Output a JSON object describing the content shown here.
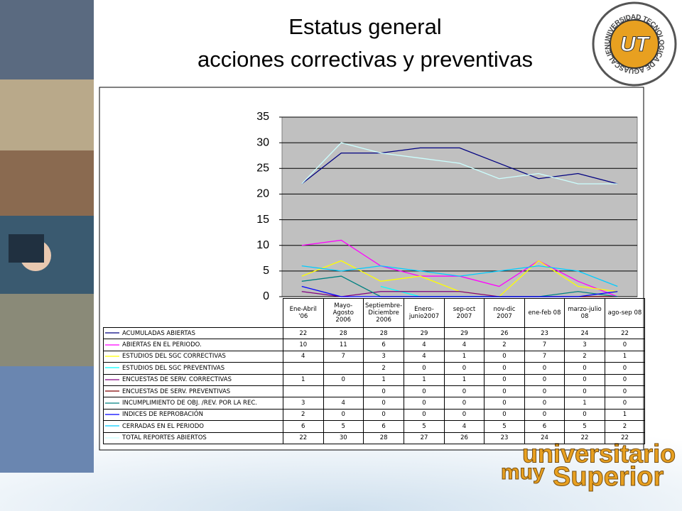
{
  "chart_data": {
    "type": "line",
    "title": "Estatus general",
    "subtitle": "acciones correctivas y preventivas",
    "categories": [
      "Ene-Abril '06",
      "Mayo-Agosto 2006",
      "Septiembre-Diciembre 2006",
      "Enero-junio2007",
      "sep-oct 2007",
      "nov-dic 2007",
      "ene-feb 08",
      "marzo-julio 08",
      "ago-sep 08"
    ],
    "series": [
      {
        "name": "ACUMULADAS ABIERTAS",
        "color": "#000080",
        "values": [
          22,
          28,
          28,
          29,
          29,
          26,
          23,
          24,
          22
        ]
      },
      {
        "name": "ABIERTAS EN EL PERIODO.",
        "color": "#ff00ff",
        "values": [
          10,
          11,
          6,
          4,
          4,
          2,
          7,
          3,
          0
        ]
      },
      {
        "name": "ESTUDIOS DEL SGC CORRECTIVAS",
        "color": "#ffff00",
        "values": [
          4,
          7,
          3,
          4,
          1,
          0,
          7,
          2,
          1
        ]
      },
      {
        "name": "ESTUDIOS DEL SGC PREVENTIVAS",
        "color": "#00ffff",
        "values": [
          null,
          null,
          2,
          0,
          0,
          0,
          0,
          0,
          0
        ]
      },
      {
        "name": "ENCUESTAS DE SERV.  CORRECTIVAS",
        "color": "#800080",
        "values": [
          1,
          0,
          1,
          1,
          1,
          0,
          0,
          0,
          0
        ]
      },
      {
        "name": "ENCUESTAS DE SERV.  PREVENTIVAS",
        "color": "#800000",
        "values": [
          null,
          null,
          0,
          0,
          0,
          0,
          0,
          0,
          0
        ]
      },
      {
        "name": "INCUMPLIMIENTO DE OBJ. /REV. POR LA REC.",
        "color": "#008080",
        "values": [
          3,
          4,
          0,
          0,
          0,
          0,
          0,
          1,
          0
        ]
      },
      {
        "name": "INDICES DE REPROBACIÓN",
        "color": "#0000ff",
        "values": [
          2,
          0,
          0,
          0,
          0,
          0,
          0,
          0,
          1
        ]
      },
      {
        "name": "CERRADAS EN EL PERIODO",
        "color": "#00ccff",
        "values": [
          6,
          5,
          6,
          5,
          4,
          5,
          6,
          5,
          2
        ]
      },
      {
        "name": "TOTAL REPORTES ABIERTOS",
        "color": "#ccffff",
        "values": [
          22,
          30,
          28,
          27,
          26,
          23,
          24,
          22,
          22
        ]
      }
    ],
    "ylim": [
      0,
      35
    ],
    "yticks": [
      0,
      5,
      10,
      15,
      20,
      25,
      30,
      35
    ],
    "grid": true,
    "plot_background": "#c0c0c0"
  },
  "logo": {
    "ring": "UNIVERSIDAD TECNOLOGICA DE AGUASCALIENTES",
    "mark": "UT"
  },
  "slogan": {
    "line1": "universitario",
    "line2a": "muy",
    "line2b": "Superior"
  }
}
